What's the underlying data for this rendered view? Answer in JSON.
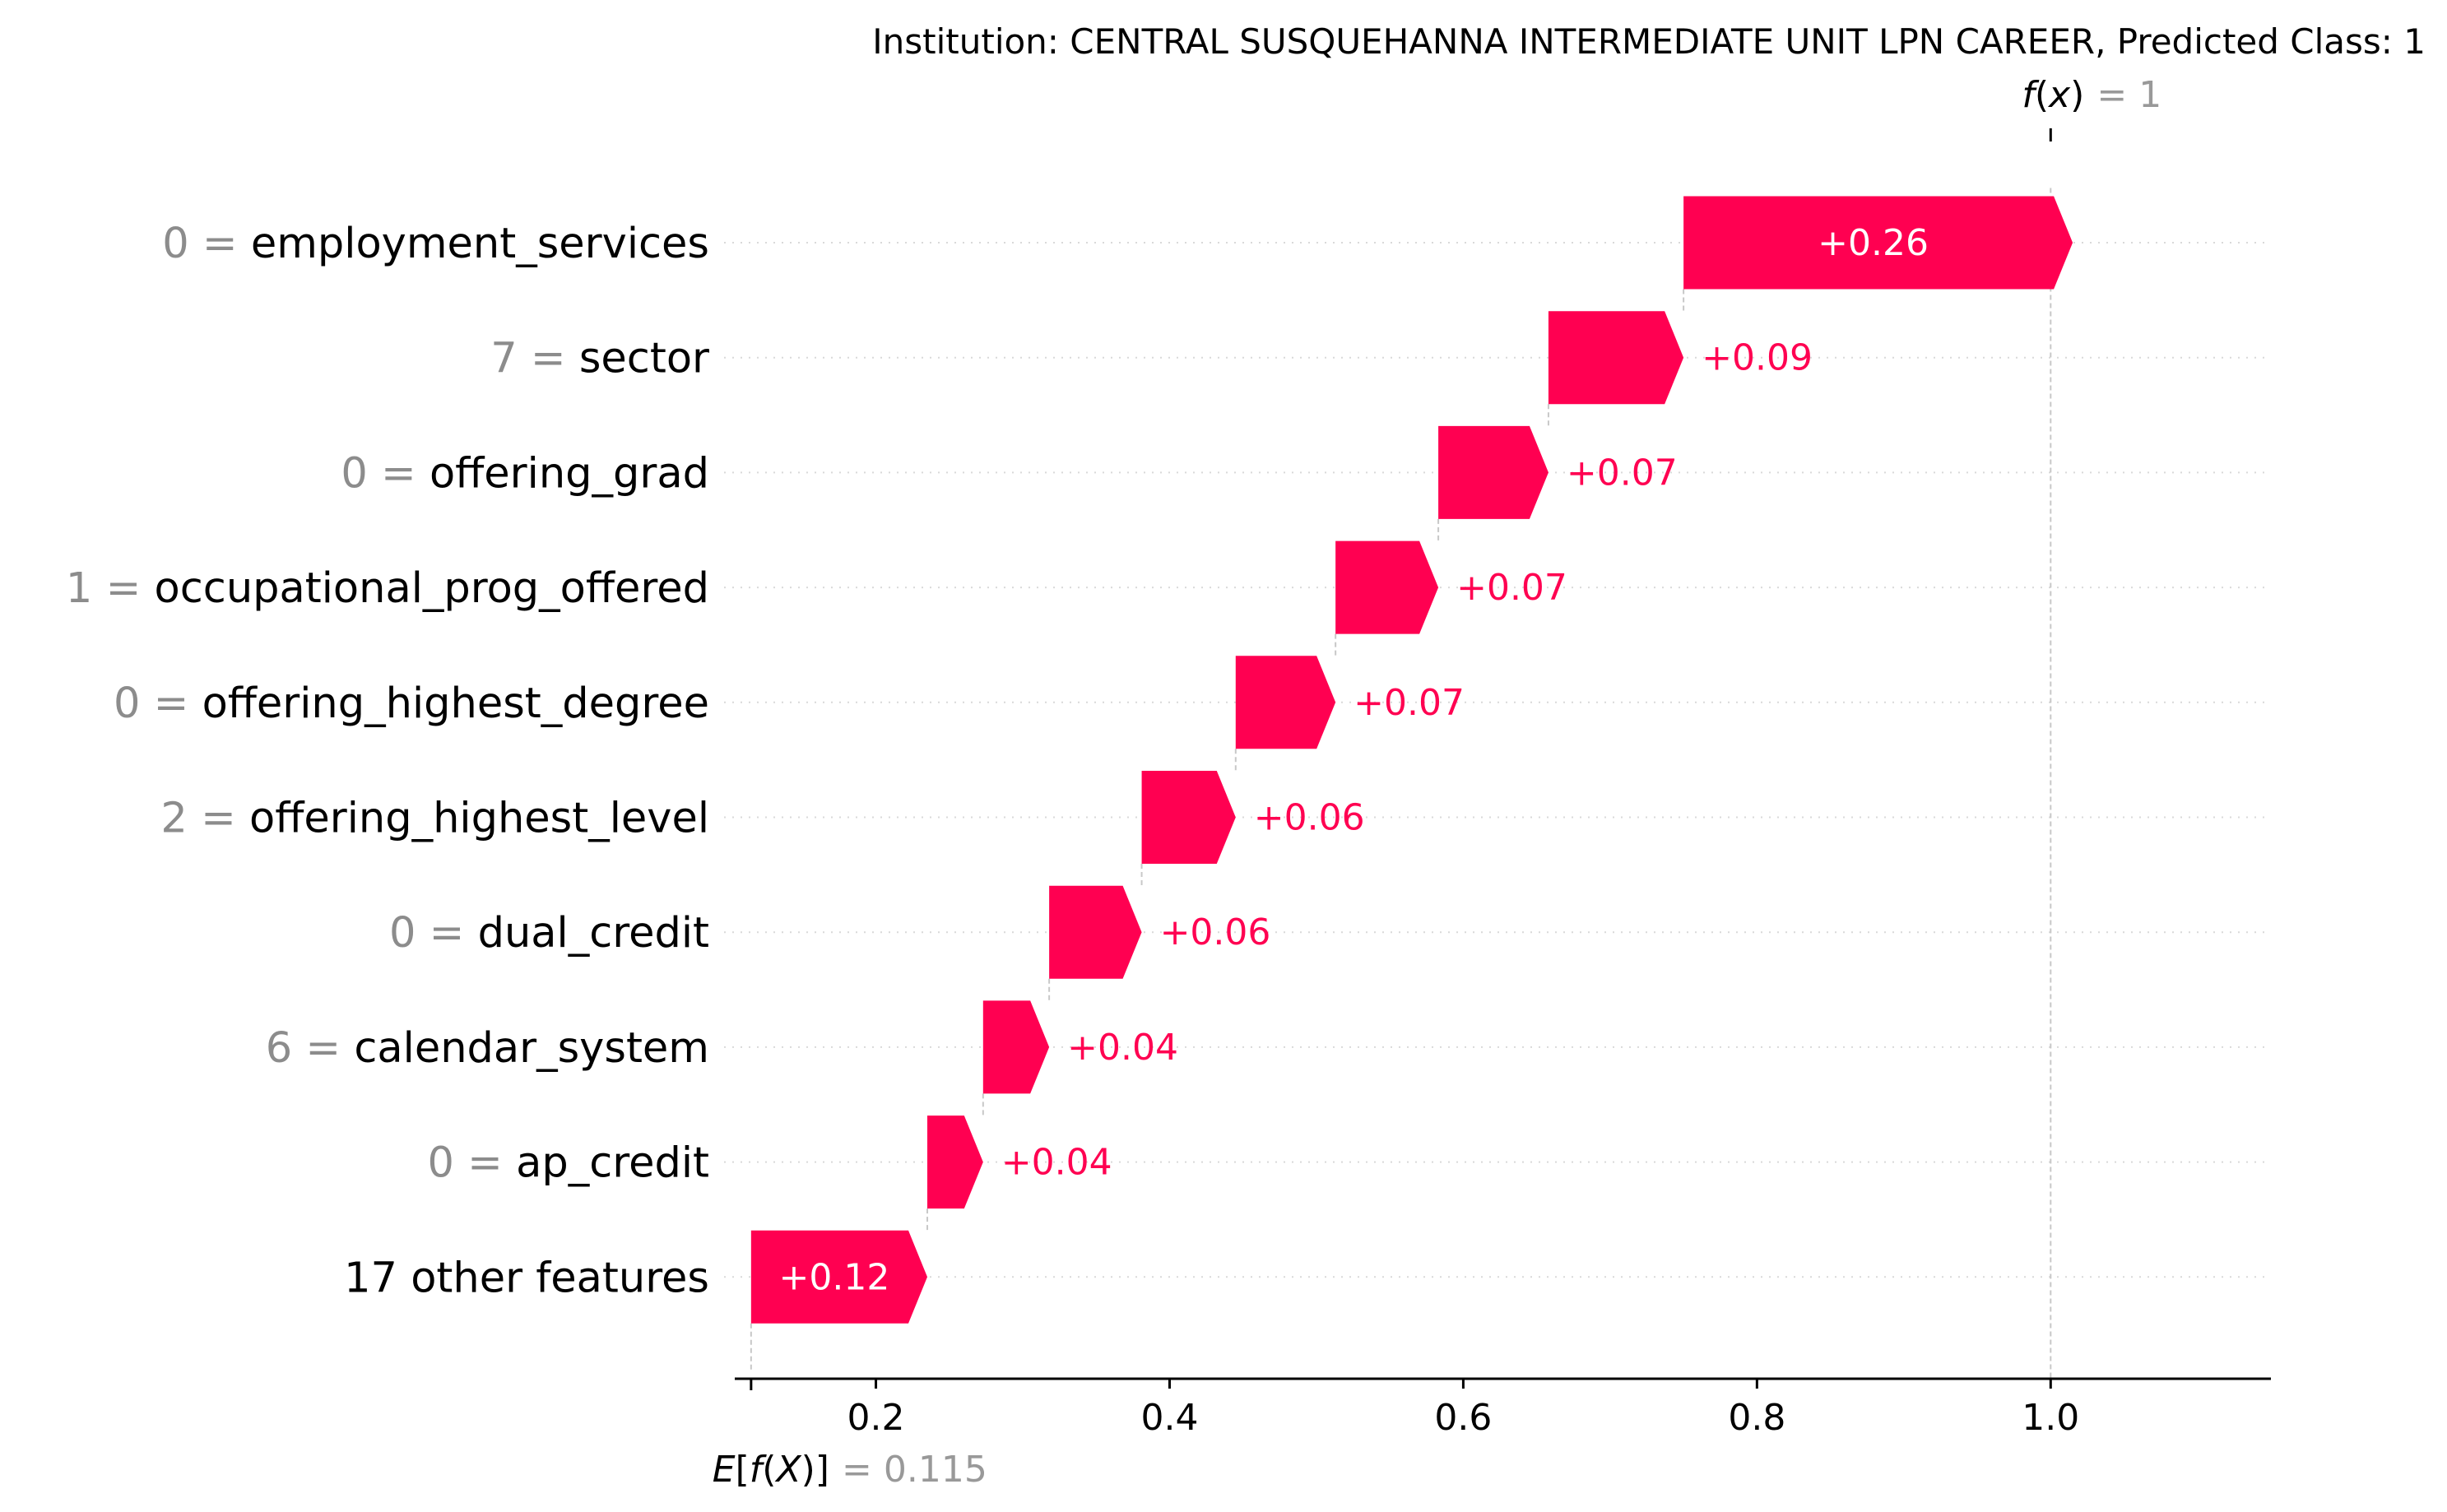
{
  "chart_data": {
    "type": "waterfall",
    "title": "Institution: CENTRAL SUSQUEHANNA INTERMEDIATE UNIT LPN CAREER, Predicted Class: 1",
    "base_value": 0.115,
    "output_value": 1,
    "base_label_text": "E[f(X)]",
    "base_value_text": "= 0.115",
    "output_label_text": "f(x)",
    "output_value_text": "= 1",
    "xlim": [
      0.105,
      1.15
    ],
    "xticks": [
      0.2,
      0.4,
      0.6,
      0.8,
      1.0
    ],
    "xtick_labels": [
      "0.2",
      "0.4",
      "0.6",
      "0.8",
      "1.0"
    ],
    "positive_color": "#ff0051",
    "negative_color": "#008bfb",
    "features": [
      {
        "value": "0",
        "name": "employment_services",
        "contribution": 0.265,
        "label": "+0.26"
      },
      {
        "value": "7",
        "name": "sector",
        "contribution": 0.092,
        "label": "+0.09"
      },
      {
        "value": "0",
        "name": "offering_grad",
        "contribution": 0.075,
        "label": "+0.07"
      },
      {
        "value": "1",
        "name": "occupational_prog_offered",
        "contribution": 0.07,
        "label": "+0.07"
      },
      {
        "value": "0",
        "name": "offering_highest_degree",
        "contribution": 0.068,
        "label": "+0.07"
      },
      {
        "value": "2",
        "name": "offering_highest_level",
        "contribution": 0.064,
        "label": "+0.06"
      },
      {
        "value": "0",
        "name": "dual_credit",
        "contribution": 0.063,
        "label": "+0.06"
      },
      {
        "value": "6",
        "name": "calendar_system",
        "contribution": 0.045,
        "label": "+0.04"
      },
      {
        "value": "0",
        "name": "ap_credit",
        "contribution": 0.038,
        "label": "+0.04"
      },
      {
        "value": "",
        "name": "17 other features",
        "contribution": 0.12,
        "label": "+0.12"
      }
    ]
  }
}
